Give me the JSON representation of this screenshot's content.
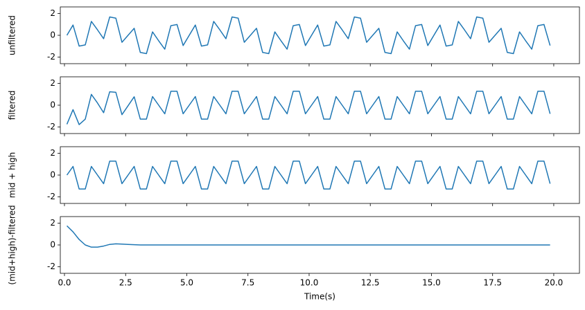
{
  "chart_data": [
    {
      "type": "line",
      "ylabel": "unfiltered",
      "ylim": [
        -2.6,
        2.6
      ],
      "yticks": [
        -2,
        0,
        2
      ],
      "color": "#1f77b4",
      "values": [
        0,
        0.94,
        -0.99,
        -0.88,
        1.27,
        0.5,
        -0.31,
        1.68,
        1.57,
        -0.64,
        0,
        0.64,
        -1.57,
        -1.68,
        0.31,
        -0.5,
        -1.27,
        0.88,
        0.99,
        -0.94,
        0,
        0.94,
        -0.99,
        -0.88,
        1.27,
        0.5,
        -0.31,
        1.68,
        1.57,
        -0.64,
        0,
        0.64,
        -1.57,
        -1.68,
        0.31,
        -0.5,
        -1.27,
        0.88,
        0.99,
        -0.94,
        0,
        0.94,
        -0.99,
        -0.88,
        1.27,
        0.5,
        -0.31,
        1.68,
        1.57,
        -0.64,
        0,
        0.64,
        -1.57,
        -1.68,
        0.31,
        -0.5,
        -1.27,
        0.88,
        0.99,
        -0.94,
        0,
        0.94,
        -0.99,
        -0.88,
        1.27,
        0.5,
        -0.31,
        1.68,
        1.57,
        -0.64,
        0,
        0.64,
        -1.57,
        -1.68,
        0.31,
        -0.5,
        -1.27,
        0.88,
        0.99,
        -0.94
      ]
    },
    {
      "type": "line",
      "ylabel": "filtered",
      "ylim": [
        -2.6,
        2.6
      ],
      "yticks": [
        -2,
        0,
        2
      ],
      "color": "#1f77b4",
      "values": [
        -1.75,
        -0.41,
        -1.78,
        -1.28,
        0.99,
        0.2,
        -0.69,
        1.23,
        1.18,
        -0.87,
        -0.05,
        0.77,
        -1.28,
        -1.28,
        0.79,
        0,
        -0.79,
        1.28,
        1.28,
        -0.79,
        0,
        0.79,
        -1.28,
        -1.28,
        0.79,
        0,
        -0.79,
        1.28,
        1.28,
        -0.79,
        0,
        0.79,
        -1.28,
        -1.28,
        0.79,
        0,
        -0.79,
        1.28,
        1.28,
        -0.79,
        0,
        0.79,
        -1.28,
        -1.28,
        0.79,
        0,
        -0.79,
        1.28,
        1.28,
        -0.79,
        0,
        0.79,
        -1.28,
        -1.28,
        0.79,
        0,
        -0.79,
        1.28,
        1.28,
        -0.79,
        0,
        0.79,
        -1.28,
        -1.28,
        0.79,
        0,
        -0.79,
        1.28,
        1.28,
        -0.79,
        0,
        0.79,
        -1.28,
        -1.28,
        0.79,
        0,
        -0.79,
        1.28,
        1.28,
        -0.79
      ]
    },
    {
      "type": "line",
      "ylabel": "mid + high",
      "ylim": [
        -2.6,
        2.6
      ],
      "yticks": [
        -2,
        0,
        2
      ],
      "color": "#1f77b4",
      "values": [
        0,
        0.79,
        -1.28,
        -1.28,
        0.79,
        0,
        -0.79,
        1.28,
        1.28,
        -0.79,
        0,
        0.79,
        -1.28,
        -1.28,
        0.79,
        0,
        -0.79,
        1.28,
        1.28,
        -0.79,
        0,
        0.79,
        -1.28,
        -1.28,
        0.79,
        0,
        -0.79,
        1.28,
        1.28,
        -0.79,
        0,
        0.79,
        -1.28,
        -1.28,
        0.79,
        0,
        -0.79,
        1.28,
        1.28,
        -0.79,
        0,
        0.79,
        -1.28,
        -1.28,
        0.79,
        0,
        -0.79,
        1.28,
        1.28,
        -0.79,
        0,
        0.79,
        -1.28,
        -1.28,
        0.79,
        0,
        -0.79,
        1.28,
        1.28,
        -0.79,
        0,
        0.79,
        -1.28,
        -1.28,
        0.79,
        0,
        -0.79,
        1.28,
        1.28,
        -0.79,
        0,
        0.79,
        -1.28,
        -1.28,
        0.79,
        0,
        -0.79,
        1.28,
        1.28,
        -0.79
      ]
    },
    {
      "type": "line",
      "ylabel": "(mid+high)-filtered",
      "xlabel": "Time(s)",
      "ylim": [
        -2.6,
        2.6
      ],
      "yticks": [
        -2,
        0,
        2
      ],
      "color": "#1f77b4",
      "xlim": [
        -0.17,
        21.05
      ],
      "xticks": [
        {
          "value": 0,
          "label": "0.0"
        },
        {
          "value": 2.5,
          "label": "2.5"
        },
        {
          "value": 5,
          "label": "5.0"
        },
        {
          "value": 7.5,
          "label": "7.5"
        },
        {
          "value": 10,
          "label": "10.0"
        },
        {
          "value": 12.5,
          "label": "12.5"
        },
        {
          "value": 15,
          "label": "15.0"
        },
        {
          "value": 17.5,
          "label": "17.5"
        },
        {
          "value": 20,
          "label": "20.0"
        }
      ],
      "x": [
        0.1,
        0.35,
        0.6,
        0.85,
        1.1,
        1.35,
        1.6,
        1.85,
        2.1,
        2.35,
        2.6,
        2.85,
        3.1,
        3.35,
        3.6,
        3.85,
        4.1,
        4.35,
        4.6,
        4.85,
        5.1,
        5.35,
        5.6,
        5.85,
        6.1,
        6.35,
        6.6,
        6.85,
        7.1,
        7.35,
        7.6,
        7.85,
        8.1,
        8.35,
        8.6,
        8.85,
        9.1,
        9.35,
        9.6,
        9.85,
        10.1,
        10.35,
        10.6,
        10.85,
        11.1,
        11.35,
        11.6,
        11.85,
        12.1,
        12.35,
        12.6,
        12.85,
        13.1,
        13.35,
        13.6,
        13.85,
        14.1,
        14.35,
        14.6,
        14.85,
        15.1,
        15.35,
        15.6,
        15.85,
        16.1,
        16.35,
        16.6,
        16.85,
        17.1,
        17.35,
        17.6,
        17.85,
        18.1,
        18.35,
        18.6,
        18.85,
        19.1,
        19.35,
        19.6,
        19.85
      ],
      "values": [
        1.75,
        1.2,
        0.5,
        0,
        -0.2,
        -0.2,
        -0.1,
        0.05,
        0.1,
        0.08,
        0.05,
        0.02,
        0,
        0,
        0,
        0,
        0,
        0,
        0,
        0,
        0,
        0,
        0,
        0,
        0,
        0,
        0,
        0,
        0,
        0,
        0,
        0,
        0,
        0,
        0,
        0,
        0,
        0,
        0,
        0,
        0,
        0,
        0,
        0,
        0,
        0,
        0,
        0,
        0,
        0,
        0,
        0,
        0,
        0,
        0,
        0,
        0,
        0,
        0,
        0,
        0,
        0,
        0,
        0,
        0,
        0,
        0,
        0,
        0,
        0,
        0,
        0,
        0,
        0,
        0,
        0,
        0,
        0,
        0,
        0
      ]
    }
  ]
}
